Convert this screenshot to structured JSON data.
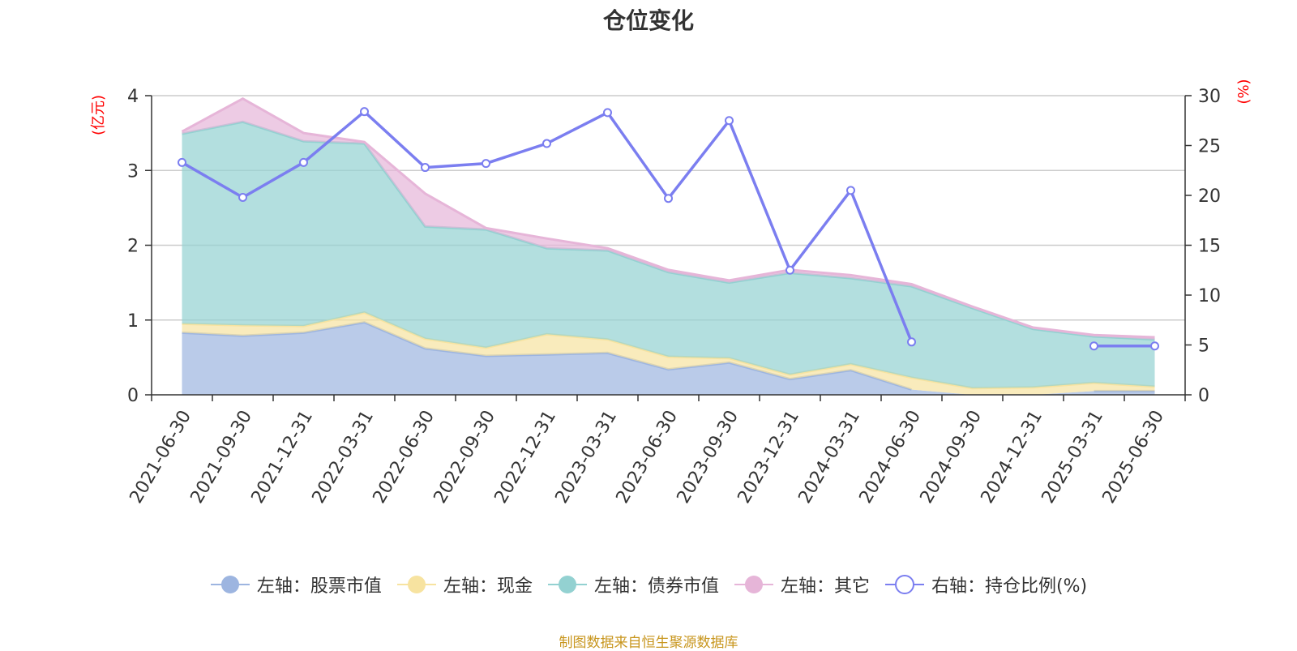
{
  "chart_data": {
    "type": "area",
    "title": "仓位变化",
    "y_left_label": "(亿元)",
    "y_right_label": "(%)",
    "y_left_range": [
      0,
      4
    ],
    "y_left_ticks": [
      "0",
      "1",
      "2",
      "3",
      "4"
    ],
    "y_right_range": [
      0,
      30
    ],
    "y_right_ticks": [
      "0",
      "5",
      "10",
      "15",
      "20",
      "25",
      "30"
    ],
    "grid": true,
    "legend_position": "bottom",
    "categories": [
      "2021-06-30",
      "2021-09-30",
      "2021-12-31",
      "2022-03-31",
      "2022-06-30",
      "2022-09-30",
      "2022-12-31",
      "2023-03-31",
      "2023-06-30",
      "2023-09-30",
      "2023-12-31",
      "2024-03-31",
      "2024-06-30",
      "2024-09-30",
      "2024-12-31",
      "2025-03-31",
      "2025-06-30"
    ],
    "series": [
      {
        "name": "左轴：股票市值",
        "axis": "left",
        "stack": true,
        "color": "#9db5e0",
        "values": [
          0.83,
          0.79,
          0.83,
          0.97,
          0.62,
          0.52,
          0.54,
          0.56,
          0.34,
          0.43,
          0.21,
          0.33,
          0.07,
          null,
          null,
          0.05,
          0.05
        ]
      },
      {
        "name": "左轴：现金",
        "axis": "left",
        "stack": true,
        "color": "#f7e3a0",
        "values": [
          0.12,
          0.14,
          0.09,
          0.13,
          0.13,
          0.11,
          0.27,
          0.18,
          0.17,
          0.06,
          0.06,
          0.08,
          0.16,
          0.09,
          0.1,
          0.11,
          0.06
        ]
      },
      {
        "name": "左轴：债券市值",
        "axis": "left",
        "stack": true,
        "color": "#93d1d1",
        "values": [
          2.54,
          2.72,
          2.47,
          2.26,
          1.5,
          1.58,
          1.15,
          1.19,
          1.13,
          1.01,
          1.36,
          1.15,
          1.22,
          1.07,
          0.78,
          0.62,
          0.63
        ]
      },
      {
        "name": "左轴：其它",
        "axis": "left",
        "stack": true,
        "color": "#e6b5d8",
        "values": [
          0.03,
          0.31,
          0.11,
          0.02,
          0.44,
          0.02,
          0.13,
          0.03,
          0.03,
          0.03,
          0.04,
          0.04,
          0.03,
          0.02,
          0.02,
          0.02,
          0.03
        ]
      },
      {
        "name": "右轴：持仓比例(%)",
        "axis": "right",
        "type": "line",
        "color": "#7b7ef0",
        "values": [
          23.3,
          19.8,
          23.3,
          28.4,
          22.8,
          23.2,
          25.2,
          28.3,
          19.7,
          27.5,
          12.5,
          20.5,
          5.3,
          null,
          null,
          4.9,
          4.9
        ]
      }
    ]
  },
  "footer": "制图数据来自恒生聚源数据库"
}
